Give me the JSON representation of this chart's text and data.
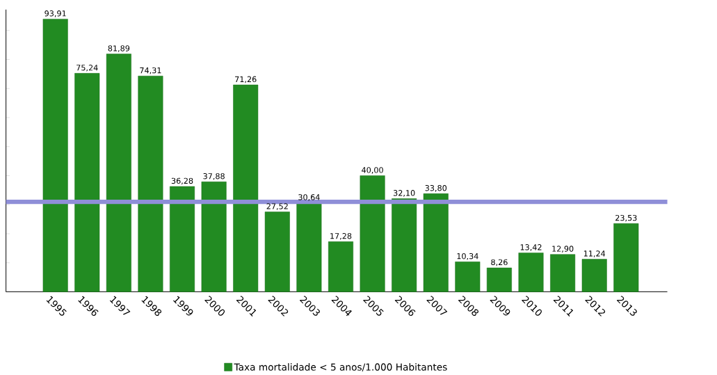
{
  "chart_data": {
    "type": "bar",
    "categories": [
      "1995",
      "1996",
      "1997",
      "1998",
      "1999",
      "2000",
      "2001",
      "2002",
      "2003",
      "2004",
      "2005",
      "2006",
      "2007",
      "2008",
      "2009",
      "2010",
      "2011",
      "2012",
      "2013"
    ],
    "series": [
      {
        "name": "Taxa mortalidade < 5 anos/1.000 Habitantes",
        "color": "#228b22",
        "values": [
          93.91,
          75.24,
          81.89,
          74.31,
          36.28,
          37.88,
          71.26,
          27.52,
          30.64,
          17.28,
          40.0,
          32.1,
          33.8,
          10.34,
          8.26,
          13.42,
          12.9,
          11.24,
          23.53
        ],
        "value_labels": [
          "93,91",
          "75,24",
          "81,89",
          "74,31",
          "36,28",
          "37,88",
          "71,26",
          "27,52",
          "30,64",
          "17,28",
          "40,00",
          "32,10",
          "33,80",
          "10,34",
          "8,26",
          "13,42",
          "12,90",
          "11,24",
          "23,53"
        ]
      }
    ],
    "tick_labels": "x",
    "ref_lines": [
      {
        "axis": "y",
        "value": 31,
        "color": "#8f8fd8"
      }
    ],
    "legend": "bottom"
  }
}
